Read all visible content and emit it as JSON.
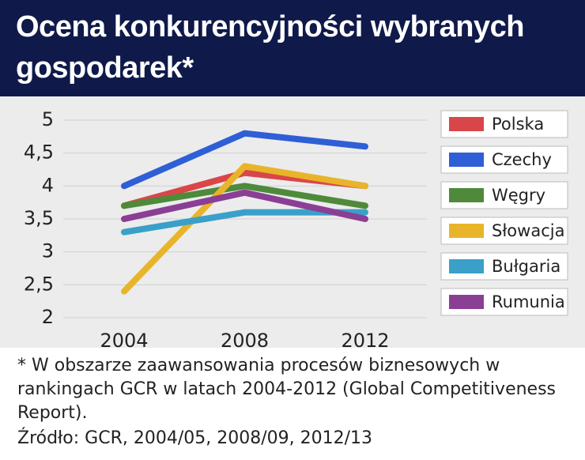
{
  "chart_data": {
    "type": "line",
    "title": "Ocena konkurencyjności wybranych gospodarek*",
    "categories": [
      "2004",
      "2008",
      "2012"
    ],
    "series": [
      {
        "name": "Polska",
        "color": "#d9464a",
        "values": [
          3.7,
          4.2,
          4.0
        ]
      },
      {
        "name": "Czechy",
        "color": "#2f5fd6",
        "values": [
          4.0,
          4.8,
          4.6
        ]
      },
      {
        "name": "Węgry",
        "color": "#4e8a3a",
        "values": [
          3.7,
          4.0,
          3.7
        ]
      },
      {
        "name": "Słowacja",
        "color": "#e8b42a",
        "values": [
          2.4,
          4.3,
          4.0
        ]
      },
      {
        "name": "Bułgaria",
        "color": "#3aa0c9",
        "values": [
          3.3,
          3.6,
          3.6
        ]
      },
      {
        "name": "Rumunia",
        "color": "#8a3f95",
        "values": [
          3.5,
          3.9,
          3.5
        ]
      }
    ],
    "ylim": [
      2,
      5
    ],
    "yticks": [
      2,
      {
        "value": 2.5,
        "label": "2,5"
      },
      3,
      {
        "value": 3.5,
        "label": "3,5"
      },
      4,
      {
        "value": 4.5,
        "label": "4,5"
      },
      5
    ],
    "grid": true,
    "legend": "right",
    "footnote": "* W obszarze zaawansowania procesów biznesowych w rankingach GCR w latach 2004-2012 (Global Competitiveness Report).",
    "source": "Źródło: GCR, 2004/05, 2008/09, 2012/13"
  }
}
